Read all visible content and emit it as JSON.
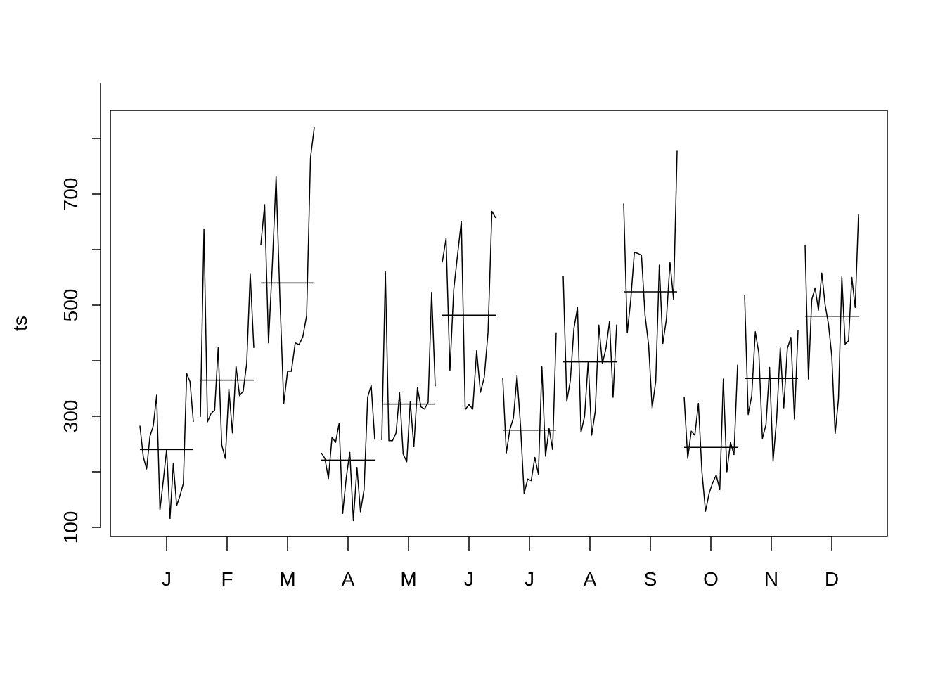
{
  "chart_data": {
    "type": "line",
    "subtype": "monthplot",
    "ylabel": "ts",
    "xlabel": "",
    "title": "",
    "yticks": [
      100,
      300,
      500,
      700
    ],
    "ylim": [
      70,
      845
    ],
    "categories": [
      "J",
      "F",
      "M",
      "A",
      "M",
      "J",
      "J",
      "A",
      "S",
      "O",
      "N",
      "D"
    ],
    "months": [
      {
        "label": "J",
        "mean": 240,
        "values": [
          283,
          227,
          205,
          264,
          283,
          338,
          131,
          185,
          240,
          116,
          215,
          139,
          157,
          179,
          377,
          362,
          290
        ]
      },
      {
        "label": "F",
        "mean": 365,
        "values": [
          299,
          636,
          290,
          305,
          311,
          423,
          248,
          224,
          349,
          270,
          390,
          337,
          345,
          395,
          557,
          423
        ]
      },
      {
        "label": "M",
        "mean": 540,
        "values": [
          609,
          681,
          432,
          572,
          732,
          513,
          323,
          381,
          381,
          432,
          429,
          443,
          481,
          765,
          820
        ]
      },
      {
        "label": "A",
        "mean": 221,
        "values": [
          234,
          224,
          188,
          262,
          253,
          287,
          125,
          190,
          235,
          112,
          208,
          128,
          168,
          334,
          356,
          258
        ]
      },
      {
        "label": "M",
        "mean": 322,
        "values": [
          257,
          560,
          256,
          256,
          270,
          342,
          232,
          218,
          327,
          245,
          351,
          317,
          313,
          325,
          523,
          354
        ]
      },
      {
        "label": "J",
        "mean": 482,
        "values": [
          577,
          620,
          382,
          528,
          590,
          651,
          312,
          321,
          313,
          418,
          343,
          370,
          451,
          669,
          657
        ]
      },
      {
        "label": "J",
        "mean": 275,
        "values": [
          369,
          234,
          276,
          297,
          373,
          283,
          161,
          187,
          184,
          226,
          196,
          389,
          228,
          278,
          240,
          451
        ]
      },
      {
        "label": "A",
        "mean": 398,
        "values": [
          553,
          327,
          364,
          458,
          496,
          271,
          300,
          399,
          266,
          309,
          464,
          395,
          422,
          471,
          334,
          465
        ]
      },
      {
        "label": "S",
        "mean": 524,
        "values": [
          683,
          450,
          510,
          595,
          593,
          590,
          482,
          428,
          315,
          363,
          572,
          431,
          475,
          577,
          511,
          778
        ]
      },
      {
        "label": "O",
        "mean": 244,
        "values": [
          335,
          224,
          273,
          266,
          323,
          200,
          129,
          161,
          180,
          194,
          168,
          367,
          200,
          253,
          231,
          393
        ]
      },
      {
        "label": "N",
        "mean": 368,
        "values": [
          519,
          303,
          337,
          452,
          413,
          260,
          285,
          388,
          219,
          296,
          423,
          315,
          422,
          442,
          295,
          455
        ]
      },
      {
        "label": "D",
        "mean": 480,
        "values": [
          609,
          367,
          510,
          531,
          491,
          558,
          501,
          466,
          409,
          269,
          331,
          551,
          430,
          436,
          550,
          496,
          663
        ]
      }
    ]
  }
}
